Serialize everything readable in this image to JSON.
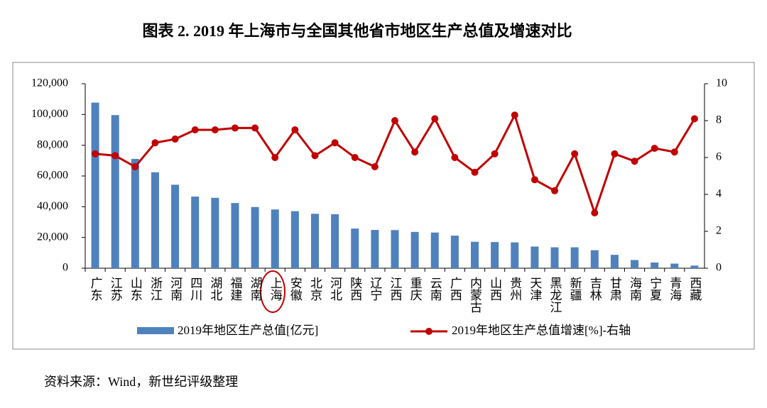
{
  "chart_data": {
    "type": "bar-line",
    "title": "图表 2. 2019 年上海市与全国其他省市地区生产总值及增速对比",
    "source": "资料来源：Wind，新世纪评级整理",
    "categories": [
      "广东",
      "江苏",
      "山东",
      "浙江",
      "河南",
      "四川",
      "湖北",
      "福建",
      "湖南",
      "上海",
      "安徽",
      "北京",
      "河北",
      "陕西",
      "辽宁",
      "江西",
      "重庆",
      "云南",
      "广西",
      "内蒙古",
      "山西",
      "贵州",
      "天津",
      "黑龙江",
      "新疆",
      "吉林",
      "甘肃",
      "海南",
      "宁夏",
      "青海",
      "西藏"
    ],
    "series": [
      {
        "name": "2019年地区生产总值[亿元]",
        "color": "#4f81bd",
        "values": [
          107700,
          99600,
          71100,
          62400,
          54300,
          46600,
          45800,
          42400,
          39800,
          38200,
          37100,
          35400,
          35100,
          25800,
          24900,
          24800,
          23600,
          23200,
          21200,
          17200,
          17000,
          16800,
          14100,
          13600,
          13600,
          11700,
          8700,
          5300,
          3700,
          3000,
          1700
        ]
      },
      {
        "name": "2019年地区生产总值增速[%]-右轴",
        "color": "#c00000",
        "axis": "y2",
        "values": [
          6.2,
          6.1,
          5.5,
          6.8,
          7.0,
          7.5,
          7.5,
          7.6,
          7.6,
          6.0,
          7.5,
          6.1,
          6.8,
          6.0,
          5.5,
          8.0,
          6.3,
          8.1,
          6.0,
          5.2,
          6.2,
          8.3,
          4.8,
          4.2,
          6.2,
          3.0,
          6.2,
          5.8,
          6.5,
          6.3,
          8.1
        ]
      }
    ],
    "ylim": [
      0,
      120000
    ],
    "yticks": [
      0,
      {
        "value": 20000,
        "label": "20,000"
      },
      {
        "value": 40000,
        "label": "40,000"
      },
      {
        "value": 60000,
        "label": "60,000"
      },
      {
        "value": 80000,
        "label": "80,000"
      },
      {
        "value": 100000,
        "label": "100,000"
      },
      {
        "value": 120000,
        "label": "120,000"
      }
    ],
    "y2lim": [
      0,
      10
    ],
    "y2ticks": [
      0,
      2,
      4,
      6,
      8,
      10
    ]
  }
}
